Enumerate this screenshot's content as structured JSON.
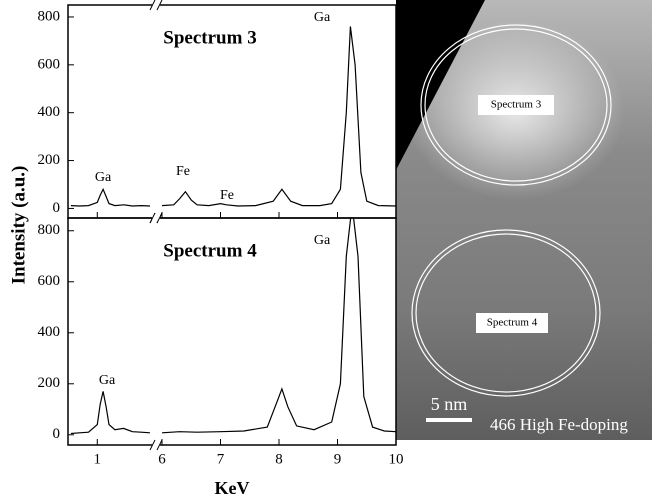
{
  "chart_data": [
    {
      "type": "line",
      "title": "Spectrum 3",
      "xlim": [
        0.5,
        10
      ],
      "xbreak": [
        1.9,
        6
      ],
      "ylim": [
        -40,
        850
      ],
      "yticks": [
        0,
        200,
        400,
        600,
        800
      ],
      "ylabel": "Intensity (a.u.)",
      "x": [
        0.55,
        0.7,
        0.85,
        1.0,
        1.05,
        1.1,
        1.15,
        1.2,
        1.3,
        1.45,
        1.6,
        1.75,
        1.9,
        6.0,
        6.2,
        6.3,
        6.4,
        6.5,
        6.6,
        6.8,
        7.0,
        7.1,
        7.3,
        7.6,
        7.9,
        8.05,
        8.2,
        8.4,
        8.7,
        8.9,
        9.05,
        9.15,
        9.22,
        9.3,
        9.4,
        9.5,
        9.7,
        10
      ],
      "series": [
        {
          "color": "#000000",
          "values": [
            12,
            10,
            12,
            25,
            55,
            80,
            50,
            20,
            12,
            15,
            10,
            12,
            10,
            12,
            15,
            40,
            70,
            35,
            15,
            12,
            20,
            15,
            10,
            12,
            30,
            80,
            30,
            12,
            12,
            20,
            80,
            400,
            760,
            600,
            150,
            30,
            12,
            10
          ]
        }
      ],
      "annotations": [
        "Ga",
        "Fe",
        "Fe",
        "Ga"
      ]
    },
    {
      "type": "line",
      "title": "Spectrum 4",
      "xlim": [
        0.5,
        10
      ],
      "xbreak": [
        1.9,
        6
      ],
      "ylim": [
        -40,
        850
      ],
      "yticks": [
        0,
        200,
        400,
        600,
        800
      ],
      "xlabel": "KeV",
      "xticks": [
        1,
        6,
        7,
        8,
        9,
        10
      ],
      "x": [
        0.55,
        0.7,
        0.85,
        1.0,
        1.05,
        1.1,
        1.15,
        1.2,
        1.3,
        1.45,
        1.6,
        1.75,
        1.9,
        6.0,
        6.3,
        6.6,
        7.0,
        7.4,
        7.8,
        7.95,
        8.05,
        8.15,
        8.3,
        8.6,
        8.9,
        9.05,
        9.15,
        9.25,
        9.35,
        9.45,
        9.6,
        9.8,
        10
      ],
      "series": [
        {
          "color": "#000000",
          "values": [
            5,
            8,
            10,
            40,
            120,
            170,
            110,
            40,
            20,
            25,
            12,
            10,
            8,
            8,
            12,
            10,
            12,
            15,
            30,
            120,
            180,
            110,
            35,
            20,
            50,
            200,
            700,
            900,
            700,
            150,
            30,
            15,
            12
          ]
        }
      ],
      "annotations": [
        "Ga",
        "Ga"
      ]
    }
  ],
  "image": {
    "labels": [
      "Spectrum 3",
      "Spectrum 4"
    ],
    "scale_bar": "5 nm",
    "caption": "466 High Fe-doping"
  }
}
